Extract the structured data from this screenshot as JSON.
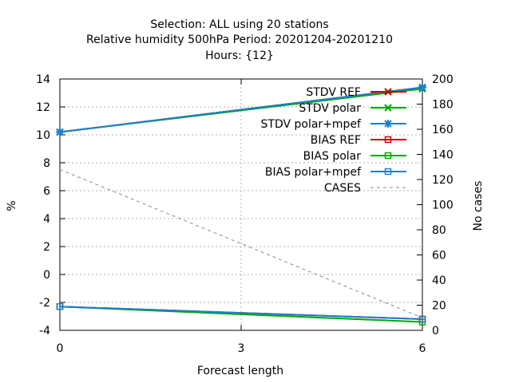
{
  "chart_data": {
    "type": "line",
    "title_lines": [
      "Selection: ALL using    20 stations",
      "Relative humidity 500hPa   Period: 20201204-20201210",
      "Hours: {12}"
    ],
    "xlabel": "Forecast length",
    "ylabel": "%",
    "y2label": "No cases",
    "x": [
      0,
      6
    ],
    "xticks": [
      0,
      3,
      6
    ],
    "xlim": [
      0,
      6
    ],
    "ylim": [
      -4,
      14
    ],
    "yticks": [
      -4,
      -2,
      0,
      2,
      4,
      6,
      8,
      10,
      12,
      14
    ],
    "y2lim": [
      0,
      200
    ],
    "y2ticks": [
      0,
      20,
      40,
      60,
      80,
      100,
      120,
      140,
      160,
      180,
      200
    ],
    "grid": true,
    "legend_position": "top-right",
    "series": [
      {
        "name": "STDV REF",
        "values": [
          10.2,
          13.4
        ],
        "color": "#cc0000",
        "marker": "x",
        "axis": "y1"
      },
      {
        "name": "STDV polar",
        "values": [
          10.2,
          13.3
        ],
        "color": "#00aa00",
        "marker": "x",
        "axis": "y1"
      },
      {
        "name": "STDV polar+mpef",
        "values": [
          10.2,
          13.4
        ],
        "color": "#1e7fd0",
        "marker": "star",
        "axis": "y1"
      },
      {
        "name": "BIAS REF",
        "values": [
          -2.3,
          -3.2
        ],
        "color": "#cc0000",
        "marker": "square",
        "axis": "y1"
      },
      {
        "name": "BIAS polar",
        "values": [
          -2.3,
          -3.4
        ],
        "color": "#00aa00",
        "marker": "square",
        "axis": "y1"
      },
      {
        "name": "BIAS polar+mpef",
        "values": [
          -2.3,
          -3.2
        ],
        "color": "#1e7fd0",
        "marker": "square",
        "axis": "y1"
      },
      {
        "name": "CASES",
        "values": [
          128,
          10
        ],
        "color": "#888888",
        "marker": "none",
        "dashed": true,
        "axis": "y2"
      }
    ]
  }
}
